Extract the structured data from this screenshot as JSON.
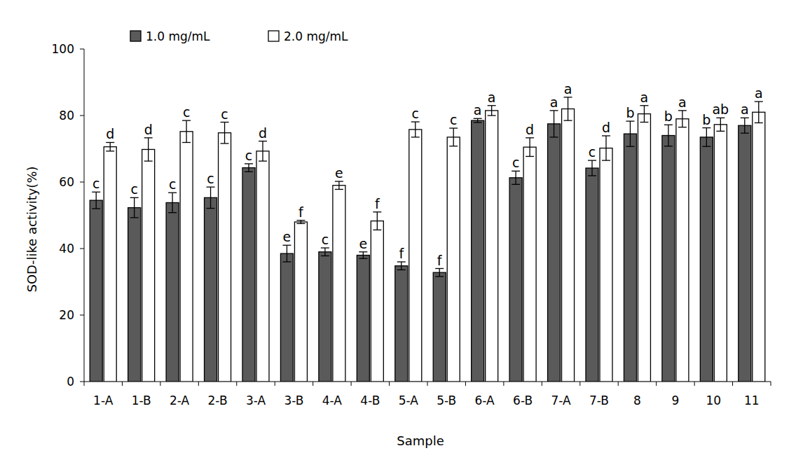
{
  "chart_data": {
    "type": "bar",
    "x_label": "Sample",
    "y_label": "SOD-like activity(%)",
    "categories": [
      "1-A",
      "1-B",
      "2-A",
      "2-B",
      "3-A",
      "3-B",
      "4-A",
      "4-B",
      "5-A",
      "5-B",
      "6-A",
      "6-B",
      "7-A",
      "7-B",
      "8",
      "9",
      "10",
      "11"
    ],
    "series": [
      {
        "name": "1.0 mg/mL",
        "color": "#5a5a5a",
        "values": [
          54.5,
          52.3,
          53.8,
          55.3,
          64.3,
          38.5,
          39,
          38,
          34.8,
          32.8,
          78.5,
          61.3,
          77.5,
          64.2,
          74.5,
          74,
          73.5,
          77
        ],
        "errors": [
          2.5,
          3,
          3,
          3.2,
          1.2,
          2.5,
          1.2,
          1,
          1.2,
          1.2,
          0.6,
          2,
          4,
          2.3,
          3.8,
          3.2,
          2.8,
          2.3
        ],
        "letters": [
          "c",
          "c",
          "c",
          "c",
          "c",
          "e",
          "c",
          "e",
          "f",
          "f",
          "a",
          "c",
          "a",
          "c",
          "b",
          "b",
          "b",
          "a"
        ]
      },
      {
        "name": "2.0 mg/mL",
        "color": "#ffffff",
        "values": [
          70.6,
          69.8,
          75.2,
          74.8,
          69.3,
          48,
          59,
          48.3,
          75.8,
          73.5,
          81.5,
          70.5,
          82,
          70.2,
          80.5,
          79,
          77.3,
          81
        ],
        "errors": [
          1.3,
          3.5,
          3.3,
          3.2,
          3,
          0.5,
          1.2,
          2.7,
          2.3,
          2.7,
          1.5,
          2.8,
          3.5,
          3.7,
          2.5,
          2.5,
          2,
          3.2
        ],
        "letters": [
          "d",
          "d",
          "c",
          "c",
          "d",
          "f",
          "e",
          "f",
          "c",
          "c",
          "a",
          "d",
          "a",
          "d",
          "a",
          "a",
          "ab",
          "a"
        ]
      }
    ],
    "ylim": [
      0,
      100
    ],
    "yticks": [
      0,
      20,
      40,
      60,
      80,
      100
    ],
    "grid": false,
    "legend": "top-left"
  }
}
